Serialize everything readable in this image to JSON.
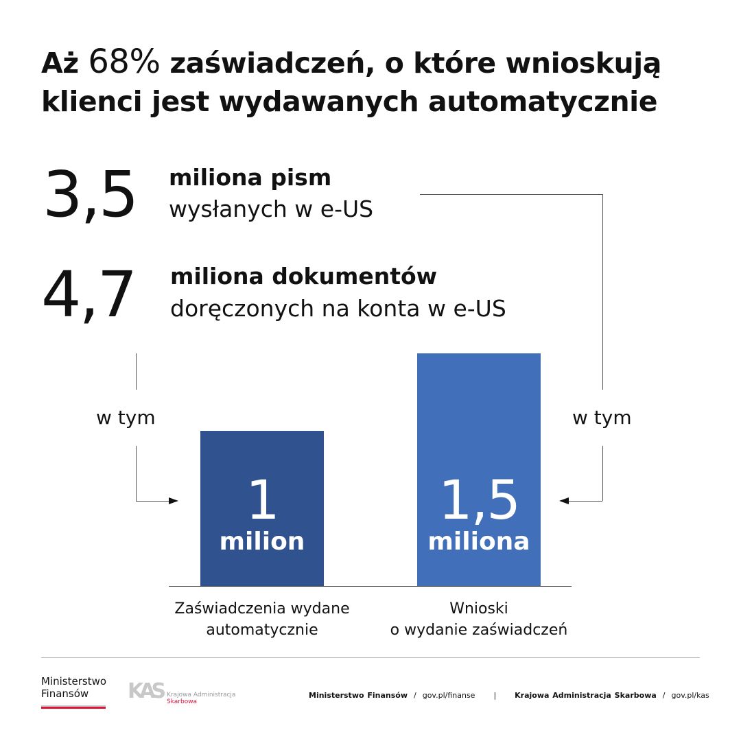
{
  "title": {
    "pre": "Aż ",
    "pct": "68%",
    "rest": " zaświadczeń, o które wnioskują",
    "line2": "klienci jest wydawanych automatycznie"
  },
  "stats": [
    {
      "value": "3,5",
      "bold": "miliona pism",
      "normal": "wysłanych w e-US"
    },
    {
      "value": "4,7",
      "bold": "miliona dokumentów",
      "normal": "doręczonych na konta w e-US"
    }
  ],
  "connector_label": "w tym",
  "chart_data": {
    "type": "bar",
    "categories": [
      "Zaświadczenia wydane automatycznie",
      "Wnioski o wydanie zaświadczeń"
    ],
    "category_lines": [
      [
        "Zaświadczenia wydane",
        "automatycznie"
      ],
      [
        "Wnioski",
        "o wydanie zaświadczeń"
      ]
    ],
    "values": [
      1,
      1.5
    ],
    "unit": "million",
    "data_labels": [
      {
        "value": "1",
        "unit": "milion"
      },
      {
        "value": "1,5",
        "unit": "miliona"
      }
    ],
    "colors": [
      "#30538f",
      "#416fba"
    ],
    "ylim": [
      0,
      1.5
    ],
    "grid": false
  },
  "footer": {
    "logo_mf": [
      "Ministerstwo",
      "Finansów"
    ],
    "logo_kas": [
      "Krajowa Administracja",
      "Skarbowa"
    ],
    "logo_kas_mark": "KAS",
    "mf_name": "Ministerstwo Finansów",
    "mf_url": "gov.pl/finanse",
    "sep": "|",
    "slash": "/",
    "kas_name": "Krajowa Administracja Skarbowa",
    "kas_url": "gov.pl/kas",
    "accent": "#dc143c"
  }
}
